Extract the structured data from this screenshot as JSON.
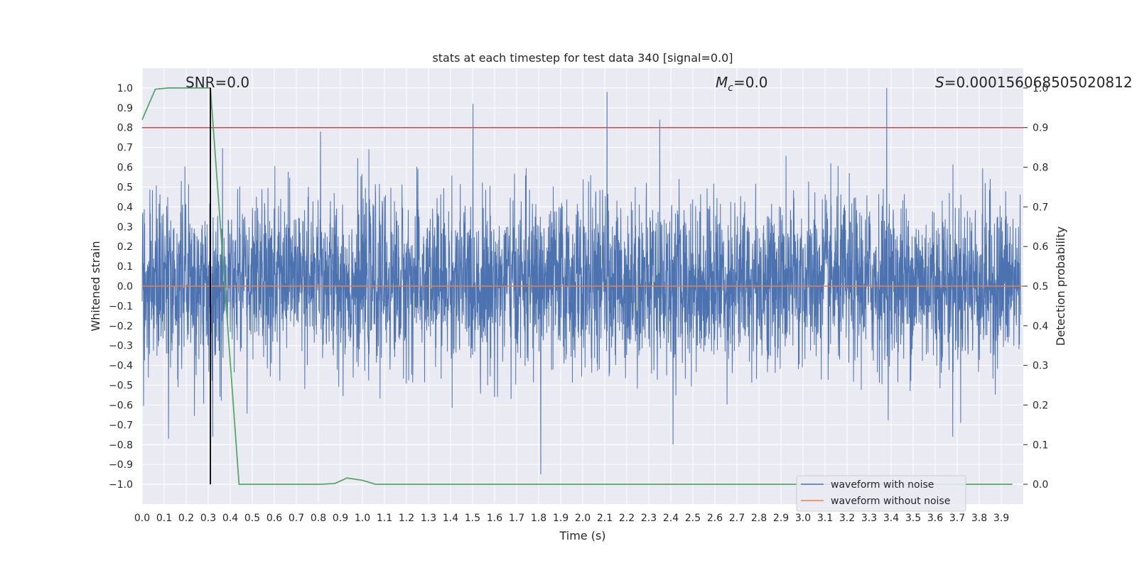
{
  "chart_data": {
    "type": "line",
    "title": "stats at each timestep for test data 340 [signal=0.0]",
    "xlabel": "Time (s)",
    "ylabel": "Whitened strain",
    "y2label": "Detection probability",
    "xlim": [
      0.0,
      4.0
    ],
    "ylim": [
      -1.1,
      1.1
    ],
    "y2lim": [
      -0.05,
      1.05
    ],
    "grid": true,
    "x_ticks": [
      "0.0",
      "0.1",
      "0.2",
      "0.3",
      "0.4",
      "0.5",
      "0.6",
      "0.7",
      "0.8",
      "0.9",
      "1.0",
      "1.1",
      "1.2",
      "1.3",
      "1.4",
      "1.5",
      "1.6",
      "1.7",
      "1.8",
      "1.9",
      "2.0",
      "2.1",
      "2.2",
      "2.3",
      "2.4",
      "2.5",
      "2.6",
      "2.7",
      "2.8",
      "2.9",
      "3.0",
      "3.1",
      "3.2",
      "3.3",
      "3.4",
      "3.5",
      "3.6",
      "3.7",
      "3.8",
      "3.9"
    ],
    "y_ticks": [
      "1.0",
      "0.9",
      "0.8",
      "0.7",
      "0.6",
      "0.5",
      "0.4",
      "0.3",
      "0.2",
      "0.1",
      "0.0",
      "−0.1",
      "−0.2",
      "−0.3",
      "−0.4",
      "−0.5",
      "−0.6",
      "−0.7",
      "−0.8",
      "−0.9",
      "−1.0"
    ],
    "y2_ticks": [
      "1.0",
      "0.9",
      "0.8",
      "0.7",
      "0.6",
      "0.5",
      "0.4",
      "0.3",
      "0.2",
      "0.1",
      "0.0"
    ],
    "annotations": {
      "snr": "SNR=0.0",
      "mc_symbol": "M",
      "mc_sub": "c",
      "mc_value": "=0.0",
      "s_symbol": "S",
      "s_value": "=0.000156068505020812"
    },
    "legend": {
      "placement": "lower-right",
      "entries": [
        "waveform with noise",
        "waveform without noise"
      ]
    },
    "series": [
      {
        "name": "waveform with noise",
        "color": "#4c72b0",
        "axis": "left",
        "generated": true,
        "sample_rate": 1024,
        "amplitude_range": [
          -0.95,
          1.0
        ],
        "peaks": [
          [
            2.11,
            0.98
          ],
          [
            3.38,
            1.0
          ],
          [
            1.81,
            -0.95
          ],
          [
            0.12,
            -0.77
          ],
          [
            0.32,
            -0.76
          ],
          [
            2.41,
            -0.8
          ],
          [
            3.68,
            -0.76
          ],
          [
            2.35,
            0.84
          ],
          [
            0.81,
            0.78
          ]
        ]
      },
      {
        "name": "waveform without noise",
        "color": "#dd8452",
        "axis": "left",
        "x": [
          0.0,
          4.0
        ],
        "y": [
          0.0,
          0.0
        ]
      },
      {
        "name": "detection probability",
        "color": "#55a868",
        "axis": "right",
        "x": [
          0.0,
          0.06,
          0.12,
          0.19,
          0.25,
          0.31,
          0.375,
          0.44,
          0.5,
          0.56,
          0.62,
          0.69,
          0.75,
          0.81,
          0.875,
          0.93,
          1.0,
          1.06,
          1.12,
          3.95
        ],
        "y": [
          0.92,
          0.997,
          1.0,
          1.0,
          1.0,
          1.0,
          0.5,
          0.0,
          0.0,
          0.0,
          0.0,
          0.0,
          0.0,
          0.0,
          0.002,
          0.016,
          0.01,
          0.0,
          0.0,
          0.0
        ]
      }
    ],
    "threshold": {
      "axis": "right",
      "value": 0.9,
      "color": "#c44e52"
    },
    "marker_time": {
      "value": 0.31,
      "color": "#000000"
    }
  }
}
